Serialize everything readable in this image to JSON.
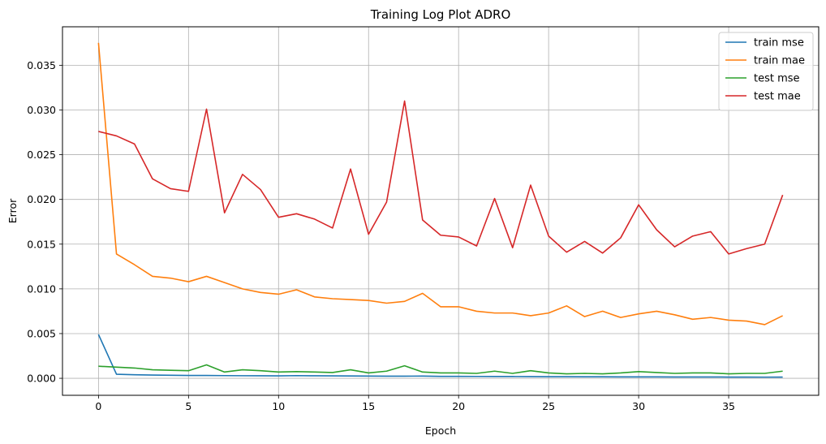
{
  "chart_data": {
    "type": "line",
    "title": "Training Log Plot ADRO",
    "xlabel": "Epoch",
    "ylabel": "Error",
    "xlim": [
      -2,
      40
    ],
    "ylim": [
      -0.0019,
      0.0393
    ],
    "xticks": [
      0,
      5,
      10,
      15,
      20,
      25,
      30,
      35
    ],
    "xtick_labels": [
      "0",
      "5",
      "10",
      "15",
      "20",
      "25",
      "30",
      "35"
    ],
    "yticks": [
      0.0,
      0.005,
      0.01,
      0.015,
      0.02,
      0.025,
      0.03,
      0.035
    ],
    "ytick_labels": [
      "0.000",
      "0.005",
      "0.010",
      "0.015",
      "0.020",
      "0.025",
      "0.030",
      "0.035"
    ],
    "grid": true,
    "legend_position": "top-right",
    "x": [
      0,
      1,
      2,
      3,
      4,
      5,
      6,
      7,
      8,
      9,
      10,
      11,
      12,
      13,
      14,
      15,
      16,
      17,
      18,
      19,
      20,
      21,
      22,
      23,
      24,
      25,
      26,
      27,
      28,
      29,
      30,
      31,
      32,
      33,
      34,
      35,
      36,
      37,
      38
    ],
    "series": [
      {
        "name": "train mse",
        "color": "#1f77b4",
        "values": [
          0.0049,
          0.00045,
          0.0004,
          0.00036,
          0.00034,
          0.00032,
          0.00032,
          0.0003,
          0.00029,
          0.00028,
          0.00027,
          0.0003,
          0.00028,
          0.00027,
          0.00026,
          0.00025,
          0.00024,
          0.00024,
          0.00025,
          0.00022,
          0.00022,
          0.00021,
          0.0002,
          0.0002,
          0.00019,
          0.00018,
          0.00018,
          0.00017,
          0.00017,
          0.00016,
          0.00016,
          0.00016,
          0.00015,
          0.00015,
          0.00015,
          0.00014,
          0.00014,
          0.00013,
          0.00014
        ]
      },
      {
        "name": "train mae",
        "color": "#ff7f0e",
        "values": [
          0.0375,
          0.0139,
          0.0127,
          0.0114,
          0.0112,
          0.0108,
          0.0114,
          0.0107,
          0.01,
          0.0096,
          0.0094,
          0.0099,
          0.0091,
          0.0089,
          0.0088,
          0.0087,
          0.0084,
          0.0086,
          0.0095,
          0.008,
          0.008,
          0.0075,
          0.0073,
          0.0073,
          0.007,
          0.0073,
          0.0081,
          0.0069,
          0.0075,
          0.0068,
          0.0072,
          0.0075,
          0.0071,
          0.0066,
          0.0068,
          0.0065,
          0.0064,
          0.006,
          0.007
        ]
      },
      {
        "name": "test mse",
        "color": "#2ca02c",
        "values": [
          0.00135,
          0.00125,
          0.00115,
          0.00095,
          0.0009,
          0.00085,
          0.0015,
          0.0007,
          0.00095,
          0.00085,
          0.0007,
          0.00075,
          0.0007,
          0.00065,
          0.00095,
          0.0006,
          0.0008,
          0.0014,
          0.0007,
          0.0006,
          0.0006,
          0.00055,
          0.0008,
          0.00055,
          0.00085,
          0.0006,
          0.0005,
          0.00055,
          0.0005,
          0.0006,
          0.00075,
          0.00065,
          0.00055,
          0.0006,
          0.0006,
          0.0005,
          0.00055,
          0.00055,
          0.0008
        ]
      },
      {
        "name": "test mae",
        "color": "#d62728",
        "values": [
          0.0276,
          0.0271,
          0.0262,
          0.0223,
          0.0212,
          0.0209,
          0.0301,
          0.0185,
          0.0228,
          0.0211,
          0.018,
          0.0184,
          0.0178,
          0.0168,
          0.0234,
          0.0161,
          0.0197,
          0.031,
          0.0177,
          0.016,
          0.0158,
          0.0148,
          0.0201,
          0.0146,
          0.0216,
          0.0159,
          0.0141,
          0.0153,
          0.014,
          0.0157,
          0.0194,
          0.0166,
          0.0147,
          0.0159,
          0.0164,
          0.0139,
          0.0145,
          0.015,
          0.0205
        ]
      }
    ]
  }
}
